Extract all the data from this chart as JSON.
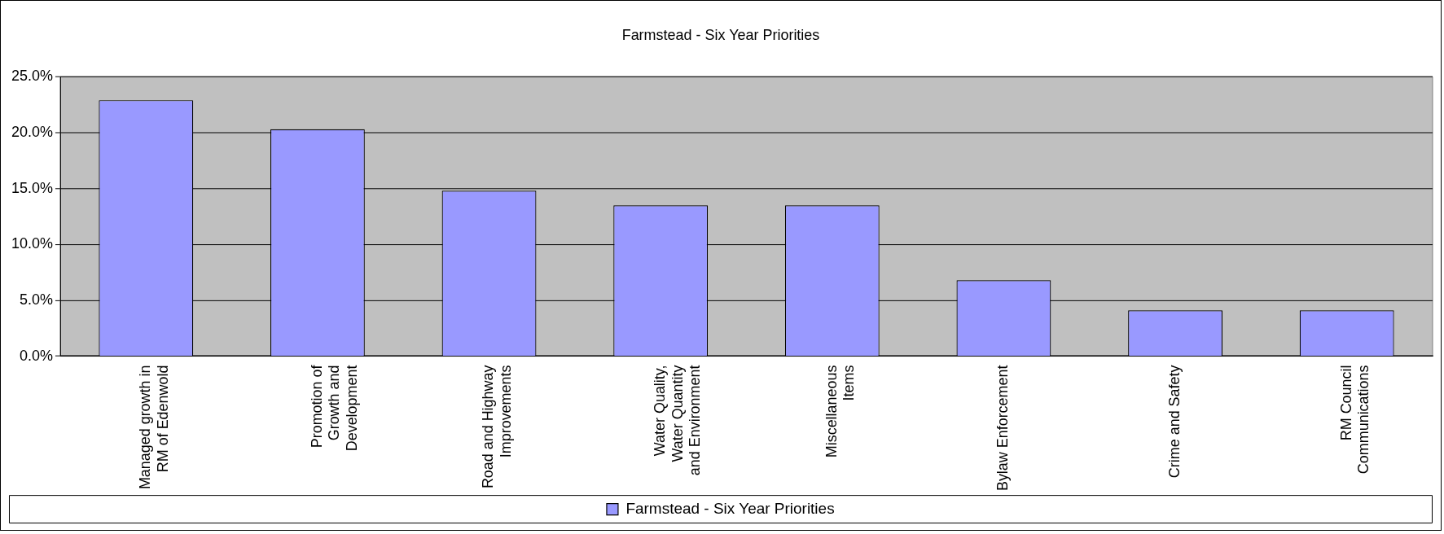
{
  "chart_data": {
    "type": "bar",
    "title": "Farmstead - Six Year Priorities",
    "categories": [
      "Managed growth in RM of Edenwold",
      "Promotion of Growth and Development",
      "Road and Highway Improvements",
      "Water Quality, Water Quantity and Environment",
      "Miscellaneous Items",
      "Bylaw Enforcement",
      "Crime and Safety",
      "RM Council Communications"
    ],
    "series": [
      {
        "name": "Farmstead - Six Year Priorities",
        "color": "#9999ff",
        "values": [
          22.9,
          20.3,
          14.8,
          13.5,
          13.5,
          6.8,
          4.1,
          4.1
        ]
      }
    ],
    "ylim": [
      0,
      25
    ],
    "yticks": [
      {
        "value": 0,
        "label": "0.0%"
      },
      {
        "value": 5,
        "label": "5.0%"
      },
      {
        "value": 10,
        "label": "10.0%"
      },
      {
        "value": 15,
        "label": "15.0%"
      },
      {
        "value": 20,
        "label": "20.0%"
      },
      {
        "value": 25,
        "label": "25.0%"
      }
    ],
    "grid": "y",
    "legend": "bottom"
  }
}
